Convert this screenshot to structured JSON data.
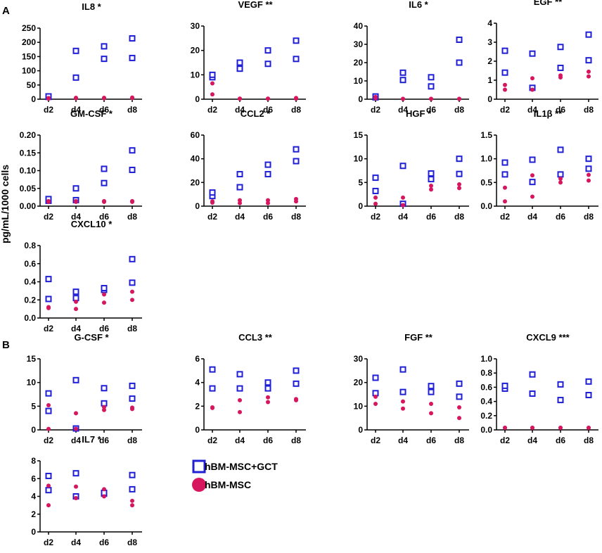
{
  "figure": {
    "panel_labels": [
      "A",
      "B"
    ],
    "y_axis_label": "pg/mL/1000 cells",
    "legend": [
      {
        "label": "hBM-MSC+GCT",
        "marker": "open-square",
        "color": "#1f1fd6"
      },
      {
        "label": "hBM-MSC",
        "marker": "filled-circle",
        "color": "#d6175f"
      }
    ]
  },
  "chart_data": [
    {
      "type": "scatter",
      "title": "IL8 *",
      "categories": [
        "d2",
        "d4",
        "d6",
        "d8"
      ],
      "ylim": [
        0,
        250
      ],
      "yticks": [
        "0",
        "50",
        "100",
        "150",
        "200",
        "250"
      ],
      "series": [
        {
          "name": "hBM-MSC+GCT",
          "values": [
            [
              8,
              10
            ],
            [
              76,
              170
            ],
            [
              142,
              186
            ],
            [
              145,
              214
            ]
          ]
        },
        {
          "name": "hBM-MSC",
          "values": [
            [
              2,
              4
            ],
            [
              3,
              5
            ],
            [
              3,
              5
            ],
            [
              4,
              6
            ]
          ]
        }
      ]
    },
    {
      "type": "scatter",
      "title": "VEGF **",
      "categories": [
        "d2",
        "d4",
        "d6",
        "d8"
      ],
      "ylim": [
        0,
        30
      ],
      "yticks": [
        "0",
        "10",
        "20",
        "30"
      ],
      "series": [
        {
          "name": "hBM-MSC+GCT",
          "values": [
            [
              9,
              10
            ],
            [
              12.5,
              15
            ],
            [
              14.5,
              20
            ],
            [
              16.5,
              24
            ]
          ]
        },
        {
          "name": "hBM-MSC",
          "values": [
            [
              2,
              6.5
            ],
            [
              0.2,
              0.2
            ],
            [
              0.2,
              0.2
            ],
            [
              0.5,
              0.2
            ]
          ]
        }
      ]
    },
    {
      "type": "scatter",
      "title": "IL6 *",
      "categories": [
        "d2",
        "d4",
        "d6",
        "d8"
      ],
      "ylim": [
        0,
        40
      ],
      "yticks": [
        "0",
        "10",
        "20",
        "30",
        "40"
      ],
      "series": [
        {
          "name": "hBM-MSC+GCT",
          "values": [
            [
              1,
              1.5
            ],
            [
              10.5,
              14.5
            ],
            [
              7,
              12
            ],
            [
              20,
              32.5
            ]
          ]
        },
        {
          "name": "hBM-MSC",
          "values": [
            [
              0.5,
              1.2
            ],
            [
              0.2,
              0.2
            ],
            [
              0.2,
              0.2
            ],
            [
              0.2,
              0.2
            ]
          ]
        }
      ]
    },
    {
      "type": "scatter",
      "title": "EGF **",
      "categories": [
        "d2",
        "d4",
        "d6",
        "d8"
      ],
      "ylim": [
        0,
        4
      ],
      "yticks": [
        "0",
        "1",
        "2",
        "3",
        "4"
      ],
      "series": [
        {
          "name": "hBM-MSC+GCT",
          "values": [
            [
              1.4,
              2.55
            ],
            [
              0.6,
              2.4
            ],
            [
              1.65,
              2.75
            ],
            [
              2.05,
              3.4
            ]
          ]
        },
        {
          "name": "hBM-MSC",
          "values": [
            [
              0.5,
              0.75
            ],
            [
              0.5,
              1.1
            ],
            [
              1.15,
              1.25
            ],
            [
              1.2,
              1.45
            ]
          ]
        }
      ]
    },
    {
      "type": "scatter",
      "title": "GM-CSF *",
      "categories": [
        "d2",
        "d4",
        "d6",
        "d8"
      ],
      "ylim": [
        0,
        0.2
      ],
      "yticks": [
        "0.00",
        "0.05",
        "0.10",
        "0.15",
        "0.20"
      ],
      "series": [
        {
          "name": "hBM-MSC+GCT",
          "values": [
            [
              0.015,
              0.02
            ],
            [
              0.017,
              0.05
            ],
            [
              0.065,
              0.105
            ],
            [
              0.102,
              0.157
            ]
          ]
        },
        {
          "name": "hBM-MSC",
          "values": [
            [
              0.012,
              0.014
            ],
            [
              0.012,
              0.014
            ],
            [
              0.012,
              0.014
            ],
            [
              0.012,
              0.014
            ]
          ]
        }
      ]
    },
    {
      "type": "scatter",
      "title": "CCL2 *",
      "categories": [
        "d2",
        "d4",
        "d6",
        "d8"
      ],
      "ylim": [
        0,
        60
      ],
      "yticks": [
        "0",
        "20",
        "40",
        "60"
      ],
      "series": [
        {
          "name": "hBM-MSC+GCT",
          "values": [
            [
              8.5,
              11.5
            ],
            [
              16,
              27
            ],
            [
              27,
              35
            ],
            [
              38,
              48
            ]
          ]
        },
        {
          "name": "hBM-MSC",
          "values": [
            [
              3,
              4
            ],
            [
              2.5,
              5
            ],
            [
              2.5,
              5
            ],
            [
              4,
              6
            ]
          ]
        }
      ]
    },
    {
      "type": "scatter",
      "title": "HGF *",
      "categories": [
        "d2",
        "d4",
        "d6",
        "d8"
      ],
      "ylim": [
        0,
        15
      ],
      "yticks": [
        "0",
        "5",
        "10",
        "15"
      ],
      "series": [
        {
          "name": "hBM-MSC+GCT",
          "values": [
            [
              3.2,
              6
            ],
            [
              0.5,
              8.5
            ],
            [
              5.7,
              6.9
            ],
            [
              6.8,
              10
            ]
          ]
        },
        {
          "name": "hBM-MSC",
          "values": [
            [
              0.5,
              1.8
            ],
            [
              0.2,
              1.8
            ],
            [
              3.5,
              4.3
            ],
            [
              3.8,
              4.6
            ]
          ]
        }
      ]
    },
    {
      "type": "scatter",
      "title": "IL1β **",
      "categories": [
        "d2",
        "d4",
        "d6",
        "d8"
      ],
      "ylim": [
        0,
        1.5
      ],
      "yticks": [
        "0.0",
        "0.5",
        "1.0",
        "1.5"
      ],
      "series": [
        {
          "name": "hBM-MSC+GCT",
          "values": [
            [
              0.67,
              0.92
            ],
            [
              0.51,
              0.98
            ],
            [
              0.67,
              1.19
            ],
            [
              0.79,
              1.0
            ]
          ]
        },
        {
          "name": "hBM-MSC",
          "values": [
            [
              0.1,
              0.39
            ],
            [
              0.2,
              0.65
            ],
            [
              0.5,
              0.58
            ],
            [
              0.54,
              0.66
            ]
          ]
        }
      ]
    },
    {
      "type": "scatter",
      "title": "CXCL10 *",
      "categories": [
        "d2",
        "d4",
        "d6",
        "d8"
      ],
      "ylim": [
        0,
        0.8
      ],
      "yticks": [
        "0.0",
        "0.2",
        "0.4",
        "0.6",
        "0.8"
      ],
      "series": [
        {
          "name": "hBM-MSC+GCT",
          "values": [
            [
              0.21,
              0.43
            ],
            [
              0.22,
              0.29
            ],
            [
              0.31,
              0.33
            ],
            [
              0.39,
              0.65
            ]
          ]
        },
        {
          "name": "hBM-MSC",
          "values": [
            [
              0.11,
              0.12
            ],
            [
              0.1,
              0.18
            ],
            [
              0.17,
              0.26
            ],
            [
              0.2,
              0.29
            ]
          ]
        }
      ]
    },
    {
      "type": "scatter",
      "title": "G-CSF *",
      "categories": [
        "d2",
        "d4",
        "d6",
        "d8"
      ],
      "ylim": [
        0,
        15
      ],
      "yticks": [
        "0",
        "5",
        "10",
        "15"
      ],
      "series": [
        {
          "name": "hBM-MSC+GCT",
          "values": [
            [
              4,
              7.7
            ],
            [
              0.3,
              10.5
            ],
            [
              5.6,
              8.8
            ],
            [
              6.6,
              9.3
            ]
          ]
        },
        {
          "name": "hBM-MSC",
          "values": [
            [
              0.2,
              5.2
            ],
            [
              0.2,
              3.5
            ],
            [
              4.2,
              4.8
            ],
            [
              4.4,
              4.7
            ]
          ]
        }
      ]
    },
    {
      "type": "scatter",
      "title": "CCL3 **",
      "categories": [
        "d2",
        "d4",
        "d6",
        "d8"
      ],
      "ylim": [
        0,
        6
      ],
      "yticks": [
        "0",
        "2",
        "4",
        "6"
      ],
      "series": [
        {
          "name": "hBM-MSC+GCT",
          "values": [
            [
              3.5,
              5.1
            ],
            [
              3.5,
              4.7
            ],
            [
              3.5,
              4.0
            ],
            [
              3.9,
              5.0
            ]
          ]
        },
        {
          "name": "hBM-MSC",
          "values": [
            [
              1.85,
              1.9
            ],
            [
              1.5,
              2.5
            ],
            [
              2.35,
              2.75
            ],
            [
              2.5,
              2.6
            ]
          ]
        }
      ]
    },
    {
      "type": "scatter",
      "title": "FGF **",
      "categories": [
        "d2",
        "d4",
        "d6",
        "d8"
      ],
      "ylim": [
        0,
        30
      ],
      "yticks": [
        "0",
        "10",
        "20",
        "30"
      ],
      "series": [
        {
          "name": "hBM-MSC+GCT",
          "values": [
            [
              15.5,
              22
            ],
            [
              16,
              25.5
            ],
            [
              16,
              18.5
            ],
            [
              14,
              19.5
            ]
          ]
        },
        {
          "name": "hBM-MSC",
          "values": [
            [
              11,
              14
            ],
            [
              9,
              12
            ],
            [
              7,
              11
            ],
            [
              5,
              9.5
            ]
          ]
        }
      ]
    },
    {
      "type": "scatter",
      "title": "CXCL9 ***",
      "categories": [
        "d2",
        "d4",
        "d6",
        "d8"
      ],
      "ylim": [
        0,
        1.0
      ],
      "yticks": [
        "0.0",
        "0.2",
        "0.4",
        "0.6",
        "0.8",
        "1.0"
      ],
      "series": [
        {
          "name": "hBM-MSC+GCT",
          "values": [
            [
              0.58,
              0.62
            ],
            [
              0.51,
              0.78
            ],
            [
              0.42,
              0.64
            ],
            [
              0.49,
              0.68
            ]
          ]
        },
        {
          "name": "hBM-MSC",
          "values": [
            [
              0.03,
              0.03
            ],
            [
              0.03,
              0.03
            ],
            [
              0.03,
              0.03
            ],
            [
              0.03,
              0.03
            ]
          ]
        }
      ]
    },
    {
      "type": "scatter",
      "title": "IL7 *",
      "categories": [
        "d2",
        "d4",
        "d6",
        "d8"
      ],
      "ylim": [
        0,
        8
      ],
      "yticks": [
        "0",
        "2",
        "4",
        "6",
        "8"
      ],
      "series": [
        {
          "name": "hBM-MSC+GCT",
          "values": [
            [
              4.7,
              6.3
            ],
            [
              4.0,
              6.6
            ],
            [
              4.3,
              4.4
            ],
            [
              4.8,
              6.4
            ]
          ]
        },
        {
          "name": "hBM-MSC",
          "values": [
            [
              3.0,
              5.2
            ],
            [
              3.8,
              5.1
            ],
            [
              4.0,
              4.8
            ],
            [
              3.0,
              3.5
            ]
          ]
        }
      ]
    }
  ]
}
